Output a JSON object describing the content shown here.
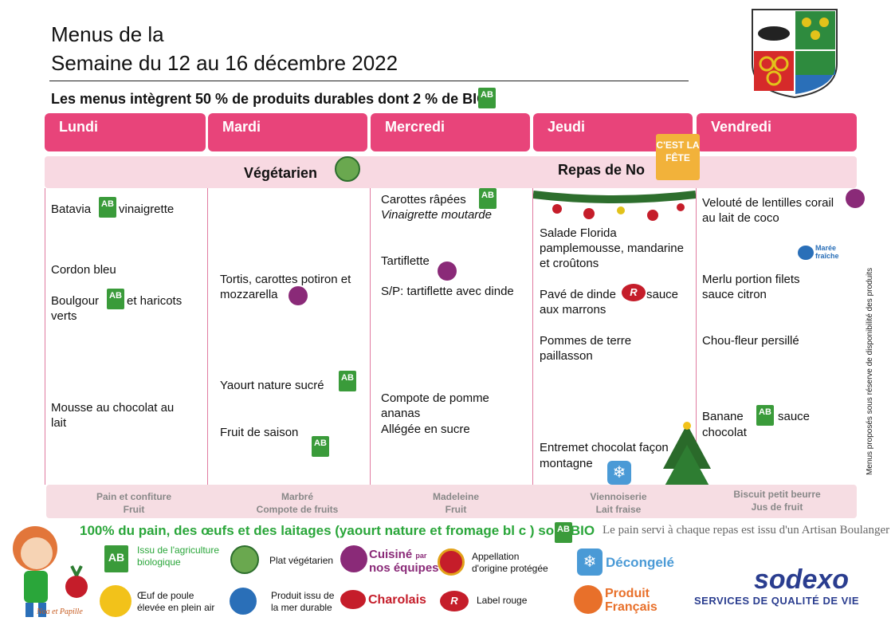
{
  "header": {
    "line1": "Menus de la",
    "line2": "Semaine du 12 au 16 décembre 2022",
    "subtitle": "Les menus intègrent 50 % de produits durables dont 2   % de BIO"
  },
  "days": [
    "Lundi",
    "Mardi",
    "Mercredi",
    "Jeudi",
    "Vendredi"
  ],
  "themes": {
    "mardi": "Végétarien",
    "jeudi": "Repas de No"
  },
  "badge_fete": "C'EST LA FÊTE",
  "menu": {
    "lundi": [
      "Batavia",
      "vinaigrette",
      "Cordon bleu",
      "Boulgour",
      "et haricots",
      "verts",
      "Mousse au chocolat au",
      "lait"
    ],
    "mardi": [
      "Tortis, carottes potiron et",
      "mozzarella",
      "Yaourt nature sucré",
      "Fruit de saison"
    ],
    "mercredi": [
      "Carottes râpées",
      "Vinaigrette moutarde",
      "Tartiflette",
      "S/P: tartiflette avec dinde",
      "Compote de pomme",
      "ananas",
      "Allégée en sucre"
    ],
    "jeudi": [
      "Salade Florida",
      "pamplemousse, mandarine",
      "et croûtons",
      "Pavé de dinde",
      "sauce",
      "aux marrons",
      "Pommes de terre",
      "paillasson",
      "Entremet chocolat façon",
      "montagne"
    ],
    "vendredi": [
      "Velouté de lentilles corail",
      "au lait de coco",
      "Merlu portion filets",
      "sauce citron",
      "Chou-fleur persillé",
      "Banane",
      "sauce",
      "chocolat"
    ]
  },
  "maree": [
    "Marée",
    "fraîche"
  ],
  "gouter": {
    "lundi": [
      "Pain et confiture",
      "Fruit"
    ],
    "mardi": [
      "Marbré",
      "Compote de fruits"
    ],
    "mercredi": [
      "Madeleine",
      "Fruit"
    ],
    "jeudi": [
      "Viennoiserie",
      "Lait fraise"
    ],
    "vendredi": [
      "Biscuit petit beurre",
      "Jus de fruit"
    ]
  },
  "bottom_line": "100% du pain, des œufs et des laitages (yaourt nature et fromage bl   c ) sont BIO",
  "bread_note": "Le pain servi à chaque repas est issu d'un Artisan Boulanger",
  "side_note": "Menus proposés sous réserve de disponibilité des produits",
  "legend": {
    "bio": [
      "Issu de l'agriculture",
      "biologique"
    ],
    "veg": "Plat végétarien",
    "cuisine": [
      "Cuisiné",
      "par",
      "nos équipes"
    ],
    "aop": [
      "Appellation",
      "d'origine protégée"
    ],
    "decongele": "Décongelé",
    "oeuf": [
      "Œuf de poule",
      "élevée en plein air"
    ],
    "mer": [
      "Produit issu de",
      "la mer durable"
    ],
    "charolais": "Charolais",
    "label_rouge": "Label rouge",
    "produit_francais": [
      "Produit",
      "Français"
    ]
  },
  "mascot": "Noa et Papille",
  "sodexo": {
    "name": "sodexo",
    "tagline": "SERVICES DE QUALITÉ DE VIE"
  },
  "ab_text": "AB",
  "colors": {
    "pink": "#e8447a",
    "band": "#f8d9e2",
    "green": "#2aa63a",
    "sodexo_blue": "#2a3d8f"
  }
}
